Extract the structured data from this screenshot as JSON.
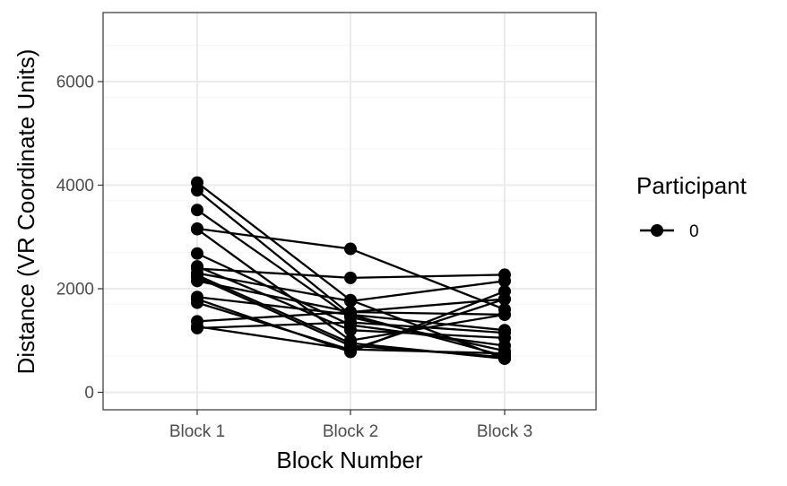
{
  "chart_data": {
    "type": "line",
    "xlabel": "Block Number",
    "ylabel": "Distance (VR Coordinate Units)",
    "categories": [
      "Block 1",
      "Block 2",
      "Block 3"
    ],
    "y_ticks": [
      0,
      2000,
      4000,
      6000
    ],
    "ylim": [
      -300,
      7200
    ],
    "grid": true,
    "legend": {
      "title": "Participant",
      "entries": [
        "0"
      ],
      "position": "right"
    },
    "colors": {
      "line": "#000000",
      "grid_major": "#ebebeb",
      "grid_minor": "#f5f5f5",
      "panel_border": "#333333",
      "tick_text": "#4d4d4d"
    },
    "series": [
      {
        "values": [
          4050,
          1780,
          650
        ]
      },
      {
        "values": [
          3900,
          1500,
          700
        ]
      },
      {
        "values": [
          3520,
          1450,
          800
        ]
      },
      {
        "values": [
          3160,
          2770,
          1600
        ]
      },
      {
        "values": [
          3150,
          1000,
          1500
        ]
      },
      {
        "values": [
          2680,
          1300,
          900
        ]
      },
      {
        "values": [
          2430,
          1200,
          1050
        ]
      },
      {
        "values": [
          2390,
          2210,
          2270
        ]
      },
      {
        "values": [
          2300,
          1760,
          2150
        ]
      },
      {
        "values": [
          2260,
          950,
          650
        ]
      },
      {
        "values": [
          2220,
          900,
          680
        ]
      },
      {
        "values": [
          2150,
          1550,
          1500
        ]
      },
      {
        "values": [
          1840,
          1500,
          1200
        ]
      },
      {
        "values": [
          1800,
          780,
          1950
        ]
      },
      {
        "values": [
          1730,
          820,
          1800
        ]
      },
      {
        "values": [
          1370,
          1550,
          1800
        ]
      },
      {
        "values": [
          1270,
          830,
          750
        ]
      },
      {
        "values": [
          1240,
          1350,
          1150
        ]
      }
    ]
  }
}
